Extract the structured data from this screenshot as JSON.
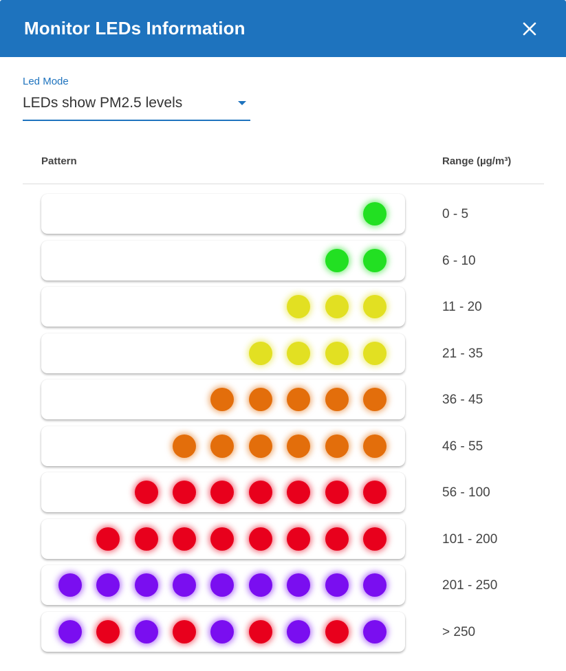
{
  "dialog": {
    "title": "Monitor LEDs Information",
    "close_icon": "close-icon"
  },
  "led_mode": {
    "label": "Led Mode",
    "value": "LEDs show PM2.5 levels",
    "caret_icon": "caret-down-icon"
  },
  "table": {
    "col_pattern": "Pattern",
    "col_range": "Range (µg/m³)"
  },
  "colors": {
    "accent": "#1e73be",
    "green": "#22e022",
    "yellow": "#e2e022",
    "orange": "#e36e0b",
    "red": "#e8001c",
    "purple": "#7a0ef0"
  },
  "rows": [
    {
      "range": "0 - 5",
      "leds": [
        "green"
      ]
    },
    {
      "range": "6 - 10",
      "leds": [
        "green",
        "green"
      ]
    },
    {
      "range": "11 - 20",
      "leds": [
        "yellow",
        "yellow",
        "yellow"
      ]
    },
    {
      "range": "21 - 35",
      "leds": [
        "yellow",
        "yellow",
        "yellow",
        "yellow"
      ]
    },
    {
      "range": "36 - 45",
      "leds": [
        "orange",
        "orange",
        "orange",
        "orange",
        "orange"
      ]
    },
    {
      "range": "46 - 55",
      "leds": [
        "orange",
        "orange",
        "orange",
        "orange",
        "orange",
        "orange"
      ]
    },
    {
      "range": "56 - 100",
      "leds": [
        "red",
        "red",
        "red",
        "red",
        "red",
        "red",
        "red"
      ]
    },
    {
      "range": "101 - 200",
      "leds": [
        "red",
        "red",
        "red",
        "red",
        "red",
        "red",
        "red",
        "red"
      ]
    },
    {
      "range": "201 - 250",
      "leds": [
        "purple",
        "purple",
        "purple",
        "purple",
        "purple",
        "purple",
        "purple",
        "purple",
        "purple"
      ]
    },
    {
      "range": "> 250",
      "leds": [
        "purple",
        "red",
        "purple",
        "red",
        "purple",
        "red",
        "purple",
        "red",
        "purple"
      ]
    }
  ]
}
